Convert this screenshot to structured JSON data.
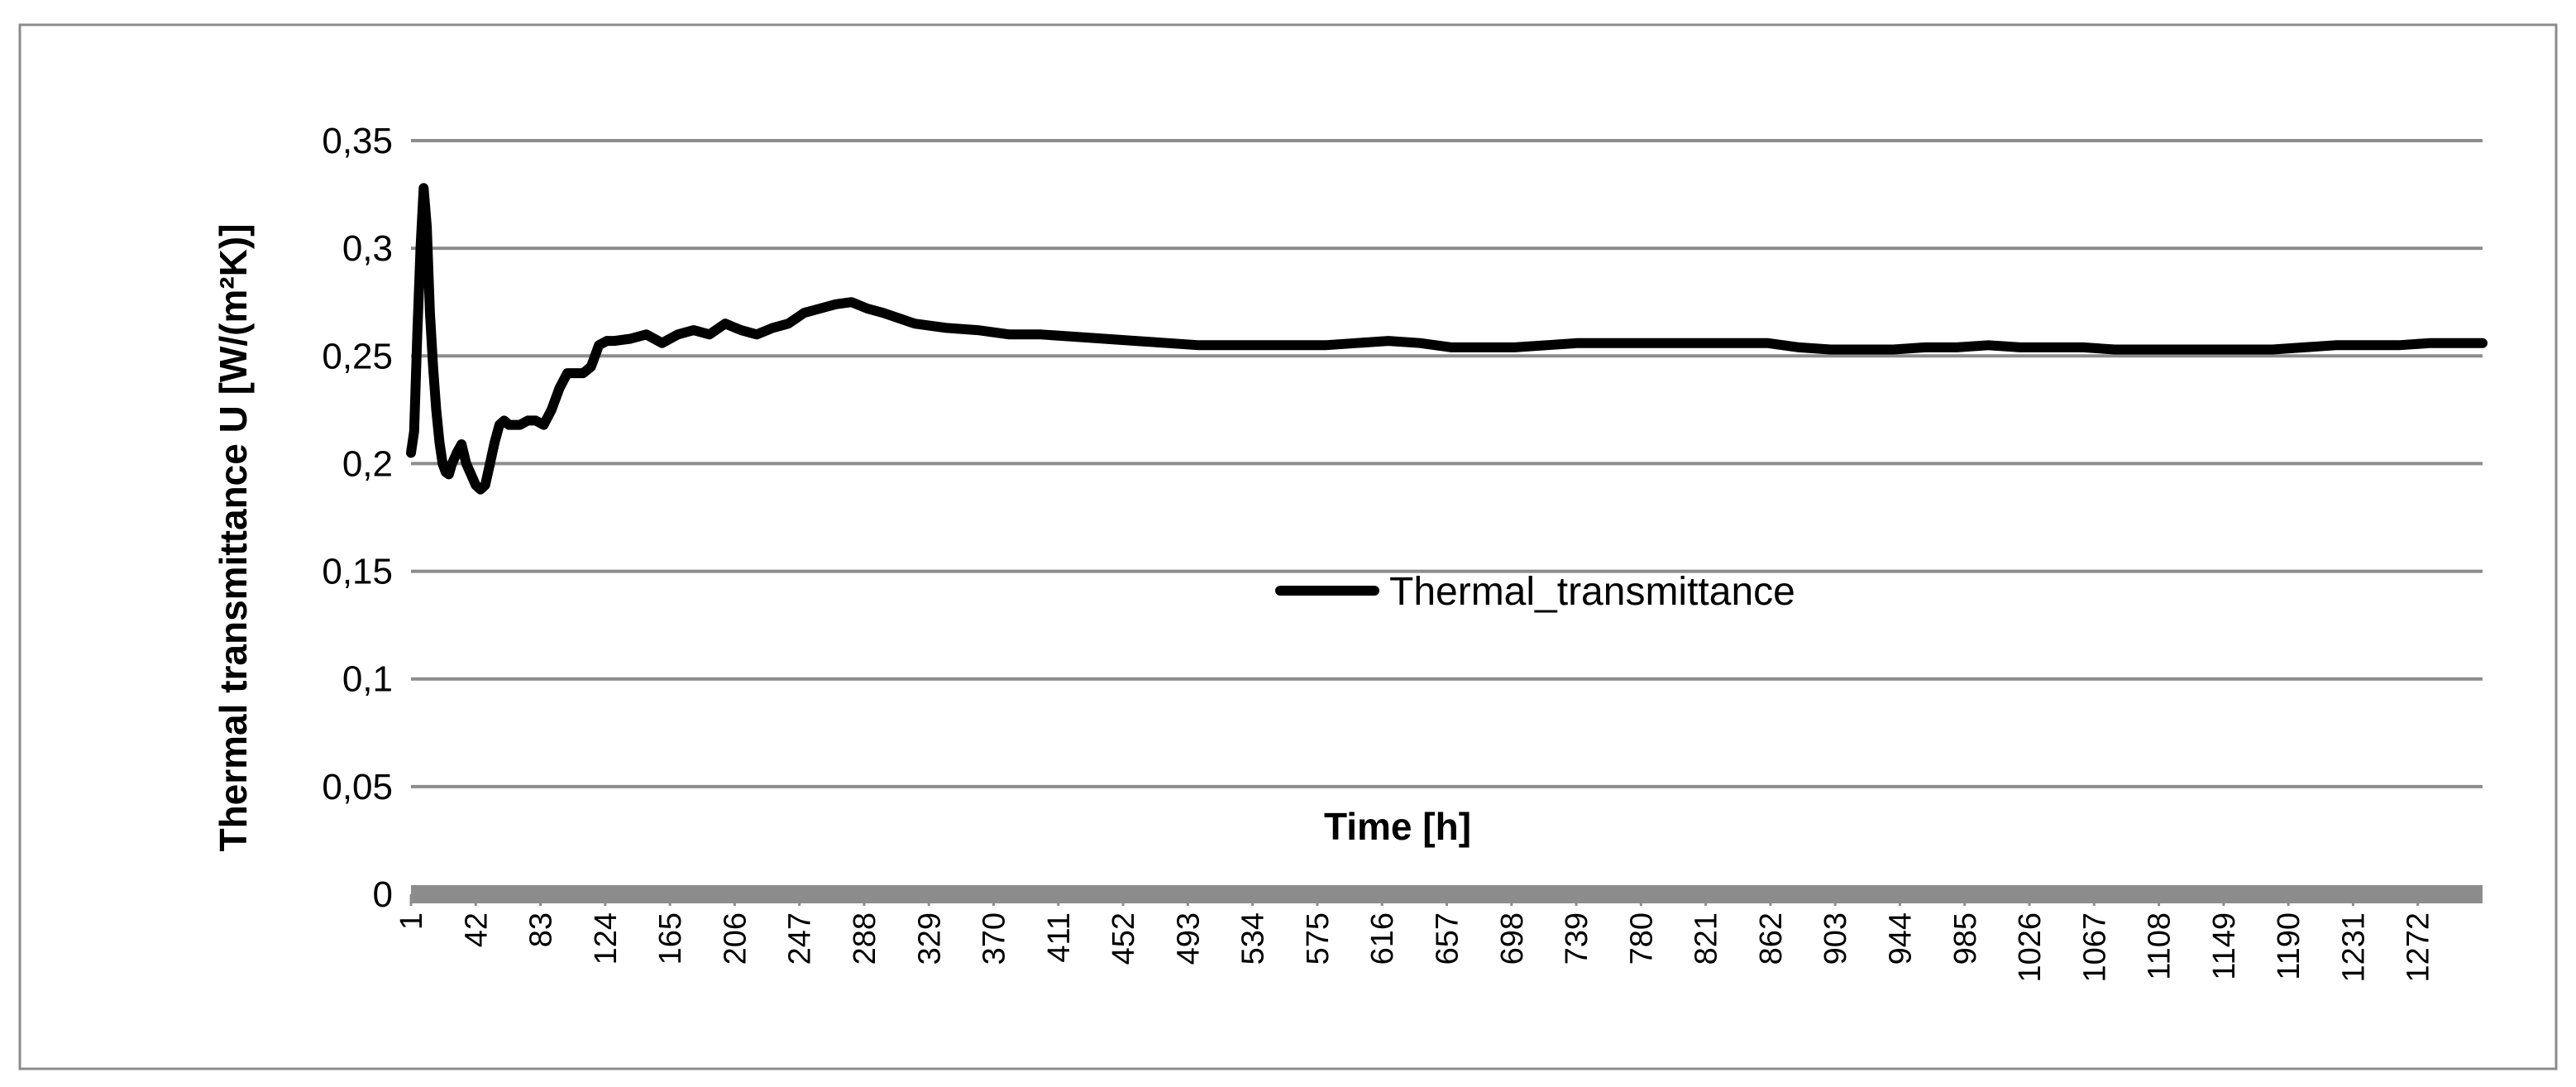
{
  "chart_data": {
    "type": "line",
    "title": "",
    "xlabel": "Time [h]",
    "ylabel": "Thermal transmittance  U [W/(m²K)]",
    "ylim": [
      0,
      0.35
    ],
    "xlim": [
      1,
      1313
    ],
    "y_ticks": [
      "0",
      "0,05",
      "0,1",
      "0,15",
      "0,2",
      "0,25",
      "0,3",
      "0,35"
    ],
    "y_tick_values": [
      0,
      0.05,
      0.1,
      0.15,
      0.2,
      0.25,
      0.3,
      0.35
    ],
    "x_ticks": [
      "1",
      "42",
      "83",
      "124",
      "165",
      "206",
      "247",
      "288",
      "329",
      "370",
      "411",
      "452",
      "493",
      "534",
      "575",
      "616",
      "657",
      "698",
      "739",
      "780",
      "821",
      "862",
      "903",
      "944",
      "985",
      "1026",
      "1067",
      "1108",
      "1149",
      "1190",
      "1231",
      "1272"
    ],
    "grid": true,
    "legend": "center",
    "series": [
      {
        "name": "Thermal_transmittance",
        "color": "#000000",
        "x": [
          1,
          3,
          5,
          7,
          9,
          11,
          13,
          15,
          17,
          19,
          21,
          23,
          25,
          27,
          30,
          33,
          36,
          39,
          42,
          45,
          48,
          51,
          54,
          57,
          60,
          63,
          66,
          70,
          75,
          80,
          85,
          90,
          95,
          100,
          105,
          110,
          115,
          120,
          125,
          130,
          140,
          150,
          160,
          170,
          180,
          190,
          200,
          210,
          220,
          230,
          240,
          250,
          260,
          270,
          280,
          290,
          300,
          320,
          340,
          360,
          380,
          400,
          420,
          440,
          460,
          480,
          500,
          520,
          540,
          560,
          580,
          600,
          620,
          640,
          660,
          680,
          700,
          720,
          740,
          760,
          780,
          800,
          820,
          840,
          860,
          880,
          900,
          920,
          940,
          960,
          980,
          1000,
          1020,
          1040,
          1060,
          1080,
          1100,
          1120,
          1140,
          1160,
          1180,
          1200,
          1220,
          1240,
          1260,
          1280,
          1300,
          1313
        ],
        "values": [
          0.205,
          0.215,
          0.26,
          0.3,
          0.328,
          0.31,
          0.27,
          0.245,
          0.225,
          0.21,
          0.2,
          0.196,
          0.195,
          0.2,
          0.205,
          0.209,
          0.2,
          0.195,
          0.19,
          0.188,
          0.19,
          0.2,
          0.21,
          0.218,
          0.22,
          0.218,
          0.218,
          0.218,
          0.22,
          0.22,
          0.218,
          0.225,
          0.235,
          0.242,
          0.242,
          0.242,
          0.245,
          0.255,
          0.257,
          0.257,
          0.258,
          0.26,
          0.256,
          0.26,
          0.262,
          0.26,
          0.265,
          0.262,
          0.26,
          0.263,
          0.265,
          0.27,
          0.272,
          0.274,
          0.275,
          0.272,
          0.27,
          0.265,
          0.263,
          0.262,
          0.26,
          0.26,
          0.259,
          0.258,
          0.257,
          0.256,
          0.255,
          0.255,
          0.255,
          0.255,
          0.255,
          0.256,
          0.257,
          0.256,
          0.254,
          0.254,
          0.254,
          0.255,
          0.256,
          0.256,
          0.256,
          0.256,
          0.256,
          0.256,
          0.256,
          0.254,
          0.253,
          0.253,
          0.253,
          0.254,
          0.254,
          0.255,
          0.254,
          0.254,
          0.254,
          0.253,
          0.253,
          0.253,
          0.253,
          0.253,
          0.253,
          0.254,
          0.255,
          0.255,
          0.255,
          0.256,
          0.256,
          0.256
        ]
      }
    ]
  }
}
